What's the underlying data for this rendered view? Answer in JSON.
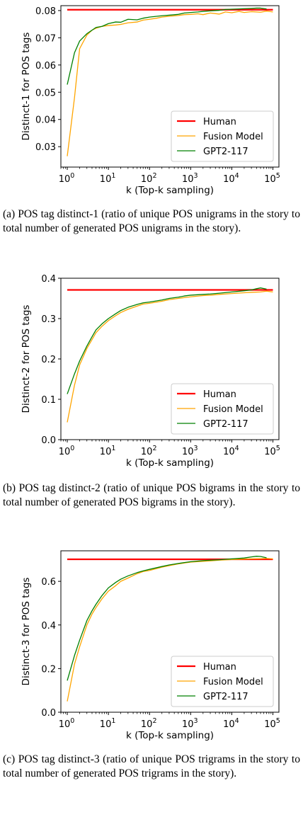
{
  "chart_data": [
    {
      "type": "line",
      "xlabel": "k (Top-k sampling)",
      "ylabel": "Distinct-1 for POS tags",
      "xscale": "log",
      "xlim": [
        0.7,
        140000
      ],
      "ylim": [
        0.0225,
        0.0818
      ],
      "yticks": [
        0.03,
        0.04,
        0.05,
        0.06,
        0.07,
        0.08
      ],
      "ytick_labels": [
        "0.03",
        "0.04",
        "0.05",
        "0.06",
        "0.07",
        "0.08"
      ],
      "legend_position": "lower-right",
      "grid": false,
      "series": [
        {
          "name": "Human",
          "color": "#ff0000",
          "width": 2.2,
          "x": [
            1,
            100000
          ],
          "y": [
            0.0803,
            0.0803
          ]
        },
        {
          "name": "Fusion Model",
          "color": "#ffa500",
          "width": 1.3,
          "x": [
            1,
            1.5,
            2,
            3,
            4,
            5,
            7,
            10,
            15,
            20,
            30,
            50,
            70,
            100,
            150,
            200,
            300,
            500,
            700,
            1000,
            1500,
            2000,
            3000,
            5000,
            7000,
            10000,
            15000,
            20000,
            30000,
            50000,
            70000,
            100000
          ],
          "y": [
            0.0265,
            0.048,
            0.066,
            0.071,
            0.0728,
            0.0735,
            0.0742,
            0.0745,
            0.0747,
            0.0749,
            0.0755,
            0.0758,
            0.0765,
            0.0768,
            0.0772,
            0.0776,
            0.0779,
            0.0782,
            0.0785,
            0.0786,
            0.0788,
            0.0785,
            0.0791,
            0.0787,
            0.0795,
            0.0792,
            0.0797,
            0.0793,
            0.0796,
            0.0794,
            0.0798,
            0.0795
          ]
        },
        {
          "name": "GPT2-117",
          "color": "#008000",
          "width": 1.3,
          "x": [
            1,
            1.5,
            2,
            3,
            4,
            5,
            7,
            10,
            15,
            20,
            30,
            50,
            70,
            100,
            150,
            200,
            300,
            500,
            700,
            1000,
            1500,
            2000,
            3000,
            5000,
            7000,
            10000,
            15000,
            20000,
            30000,
            40000,
            50000,
            70000
          ],
          "y": [
            0.0528,
            0.0645,
            0.0688,
            0.0715,
            0.0728,
            0.0738,
            0.0742,
            0.0752,
            0.0758,
            0.0757,
            0.0768,
            0.0766,
            0.0772,
            0.0776,
            0.0779,
            0.0781,
            0.0783,
            0.0786,
            0.0791,
            0.0793,
            0.0795,
            0.0797,
            0.0799,
            0.0801,
            0.0804,
            0.0805,
            0.0806,
            0.0807,
            0.0808,
            0.0809,
            0.0809,
            0.0806
          ]
        }
      ]
    },
    {
      "type": "line",
      "xlabel": "k (Top-k sampling)",
      "ylabel": "Distinct-2 for POS tags",
      "xscale": "log",
      "xlim": [
        0.7,
        140000
      ],
      "ylim": [
        0.0,
        0.4
      ],
      "yticks": [
        0.0,
        0.1,
        0.2,
        0.3,
        0.4
      ],
      "ytick_labels": [
        "0.0",
        "0.1",
        "0.2",
        "0.3",
        "0.4"
      ],
      "legend_position": "lower-right",
      "grid": false,
      "series": [
        {
          "name": "Human",
          "color": "#ff0000",
          "width": 2.2,
          "x": [
            1,
            100000
          ],
          "y": [
            0.371,
            0.371
          ]
        },
        {
          "name": "Fusion Model",
          "color": "#ffa500",
          "width": 1.3,
          "x": [
            1,
            1.5,
            2,
            3,
            4,
            5,
            7,
            10,
            15,
            20,
            30,
            50,
            70,
            100,
            200,
            300,
            500,
            700,
            1000,
            2000,
            3000,
            5000,
            10000,
            20000,
            30000,
            50000,
            70000,
            100000
          ],
          "y": [
            0.043,
            0.135,
            0.185,
            0.226,
            0.248,
            0.265,
            0.281,
            0.295,
            0.307,
            0.315,
            0.323,
            0.331,
            0.336,
            0.338,
            0.343,
            0.347,
            0.35,
            0.352,
            0.354,
            0.357,
            0.358,
            0.36,
            0.362,
            0.364,
            0.365,
            0.366,
            0.368,
            0.366
          ]
        },
        {
          "name": "GPT2-117",
          "color": "#008000",
          "width": 1.3,
          "x": [
            1,
            1.5,
            2,
            3,
            4,
            5,
            7,
            10,
            15,
            20,
            30,
            50,
            70,
            100,
            200,
            300,
            500,
            700,
            1000,
            2000,
            3000,
            5000,
            10000,
            20000,
            30000,
            40000,
            50000,
            70000
          ],
          "y": [
            0.113,
            0.163,
            0.195,
            0.232,
            0.255,
            0.272,
            0.287,
            0.3,
            0.312,
            0.32,
            0.328,
            0.335,
            0.339,
            0.341,
            0.346,
            0.35,
            0.353,
            0.356,
            0.358,
            0.36,
            0.361,
            0.363,
            0.366,
            0.369,
            0.371,
            0.374,
            0.376,
            0.373
          ]
        }
      ]
    },
    {
      "type": "line",
      "xlabel": "k (Top-k sampling)",
      "ylabel": "Distinct-3 for POS tags",
      "xscale": "log",
      "xlim": [
        0.7,
        140000
      ],
      "ylim": [
        0.0,
        0.74
      ],
      "yticks": [
        0.0,
        0.2,
        0.4,
        0.6
      ],
      "ytick_labels": [
        "0.0",
        "0.2",
        "0.4",
        "0.6"
      ],
      "legend_position": "lower-right",
      "grid": false,
      "series": [
        {
          "name": "Human",
          "color": "#ff0000",
          "width": 2.2,
          "x": [
            1,
            100000
          ],
          "y": [
            0.701,
            0.701
          ]
        },
        {
          "name": "Fusion Model",
          "color": "#ffa500",
          "width": 1.3,
          "x": [
            1,
            1.5,
            2,
            3,
            4,
            5,
            7,
            10,
            15,
            20,
            30,
            50,
            70,
            100,
            200,
            300,
            500,
            700,
            1000,
            2000,
            3000,
            5000,
            10000,
            20000,
            30000,
            50000,
            70000,
            100000
          ],
          "y": [
            0.05,
            0.22,
            0.3,
            0.4,
            0.45,
            0.48,
            0.52,
            0.555,
            0.58,
            0.6,
            0.615,
            0.635,
            0.645,
            0.65,
            0.665,
            0.672,
            0.68,
            0.684,
            0.688,
            0.692,
            0.694,
            0.697,
            0.7,
            0.702,
            0.703,
            0.704,
            0.705,
            0.703
          ]
        },
        {
          "name": "GPT2-117",
          "color": "#008000",
          "width": 1.3,
          "x": [
            1,
            1.5,
            2,
            3,
            4,
            5,
            7,
            10,
            15,
            20,
            30,
            50,
            70,
            100,
            200,
            300,
            500,
            700,
            1000,
            2000,
            3000,
            5000,
            10000,
            20000,
            30000,
            40000,
            50000,
            70000
          ],
          "y": [
            0.145,
            0.26,
            0.33,
            0.42,
            0.465,
            0.495,
            0.535,
            0.57,
            0.595,
            0.61,
            0.625,
            0.64,
            0.648,
            0.655,
            0.668,
            0.675,
            0.682,
            0.686,
            0.69,
            0.695,
            0.697,
            0.699,
            0.703,
            0.707,
            0.712,
            0.715,
            0.714,
            0.708
          ]
        }
      ]
    }
  ],
  "captions": [
    "(a) POS tag distinct-1 (ratio of unique POS unigrams in the story to total number of generated POS unigrams in the story).",
    "(b) POS tag distinct-2 (ratio of unique POS bigrams in the story to total number of generated POS bigrams in the story).",
    "(c) POS tag distinct-3 (ratio of unique POS trigrams in the story to total number of generated POS trigrams in the story)."
  ]
}
